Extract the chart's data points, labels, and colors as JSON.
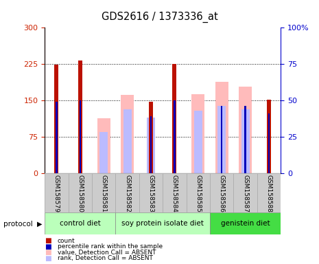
{
  "title": "GDS2616 / 1373336_at",
  "samples": [
    "GSM158579",
    "GSM158580",
    "GSM158581",
    "GSM158582",
    "GSM158583",
    "GSM158584",
    "GSM158585",
    "GSM158586",
    "GSM158587",
    "GSM158588"
  ],
  "count_values": [
    224,
    232,
    null,
    null,
    147,
    225,
    null,
    null,
    null,
    151
  ],
  "value_absent": [
    null,
    null,
    113,
    161,
    null,
    null,
    162,
    188,
    178,
    null
  ],
  "rank_absent_pct": [
    null,
    null,
    28,
    44,
    38,
    null,
    43,
    46,
    44,
    null
  ],
  "percentile_rank_pct": [
    49,
    50,
    null,
    null,
    39,
    50,
    null,
    46,
    46,
    41
  ],
  "ylim_left": [
    0,
    300
  ],
  "ylim_right": [
    0,
    100
  ],
  "left_ticks": [
    0,
    75,
    150,
    225,
    300
  ],
  "right_ticks": [
    0,
    25,
    50,
    75,
    100
  ],
  "color_count": "#bb1100",
  "color_value_absent": "#ffbbbb",
  "color_rank_absent": "#bbbbff",
  "color_percentile": "#0000bb",
  "left_axis_color": "#cc2200",
  "right_axis_color": "#0000cc",
  "proto_groups": [
    {
      "label": "control diet",
      "indices": [
        0,
        1,
        2
      ],
      "color": "#bbffbb"
    },
    {
      "label": "soy protein isolate diet",
      "indices": [
        3,
        4,
        5,
        6
      ],
      "color": "#bbffbb"
    },
    {
      "label": "genistein diet",
      "indices": [
        7,
        8,
        9
      ],
      "color": "#44dd44"
    }
  ]
}
